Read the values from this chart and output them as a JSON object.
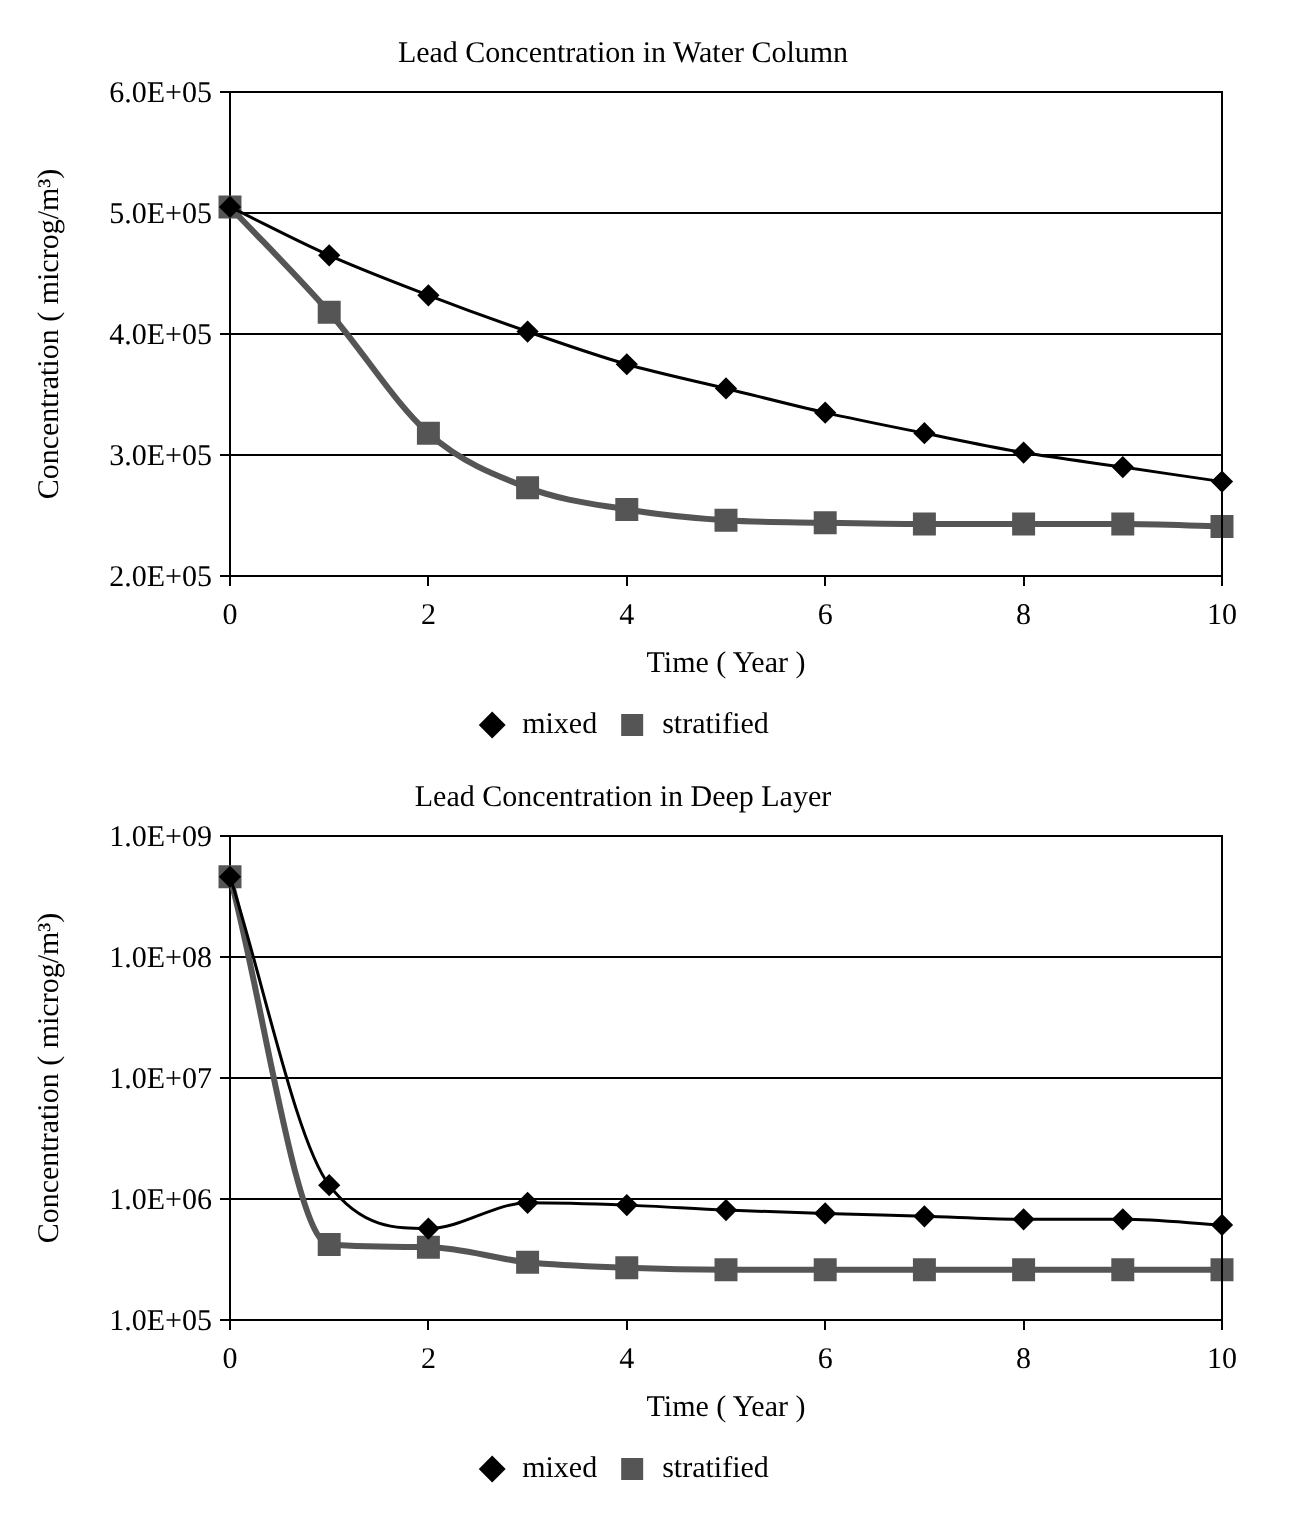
{
  "chart_data": [
    {
      "type": "line",
      "title": "Lead Concentration in Water Column",
      "xlabel": "Time ( Year )",
      "ylabel": "Concentration ( microg/m³)",
      "x": [
        0,
        1,
        2,
        3,
        4,
        5,
        6,
        7,
        8,
        9,
        10
      ],
      "series": [
        {
          "name": "mixed",
          "color": "#000000",
          "marker": "diamond",
          "values": [
            505000,
            465000,
            432000,
            402000,
            375000,
            355000,
            335000,
            318000,
            302000,
            290000,
            278000
          ]
        },
        {
          "name": "stratified",
          "color": "#555555",
          "marker": "square",
          "values": [
            505000,
            418000,
            318000,
            273000,
            255000,
            246000,
            244000,
            243000,
            243000,
            243000,
            241000
          ]
        }
      ],
      "xlim": [
        0,
        10
      ],
      "xticks": [
        0,
        2,
        4,
        6,
        8,
        10
      ],
      "ylim": [
        200000,
        600000
      ],
      "yticks": [
        {
          "value": 200000,
          "label": "2.0E+05"
        },
        {
          "value": 300000,
          "label": "3.0E+05"
        },
        {
          "value": 400000,
          "label": "4.0E+05"
        },
        {
          "value": 500000,
          "label": "5.0E+05"
        },
        {
          "value": 600000,
          "label": "6.0E+05"
        }
      ],
      "grid": "y",
      "legend": "bottom"
    },
    {
      "type": "line",
      "title": "Lead Concentration in Deep Layer",
      "xlabel": "Time ( Year )",
      "ylabel": "Concentration ( microg/m³)",
      "x": [
        0,
        1,
        2,
        3,
        4,
        5,
        6,
        7,
        8,
        9,
        10
      ],
      "series": [
        {
          "name": "mixed",
          "color": "#000000",
          "marker": "diamond",
          "values": [
            460000000,
            1300000,
            570000,
            930000,
            890000,
            810000,
            760000,
            720000,
            680000,
            680000,
            610000
          ]
        },
        {
          "name": "stratified",
          "color": "#555555",
          "marker": "square",
          "values": [
            460000000,
            420000,
            400000,
            300000,
            270000,
            260000,
            260000,
            260000,
            260000,
            260000,
            260000
          ]
        }
      ],
      "xlim": [
        0,
        10
      ],
      "xticks": [
        0,
        2,
        4,
        6,
        8,
        10
      ],
      "ylim": [
        100000,
        1000000000
      ],
      "log": "y",
      "yticks": [
        {
          "value": 100000,
          "label": "1.0E+05"
        },
        {
          "value": 1000000,
          "label": "1.0E+06"
        },
        {
          "value": 10000000,
          "label": "1.0E+07"
        },
        {
          "value": 100000000,
          "label": "1.0E+08"
        },
        {
          "value": 1000000000,
          "label": "1.0E+09"
        }
      ],
      "grid": "y",
      "legend": "bottom"
    }
  ]
}
